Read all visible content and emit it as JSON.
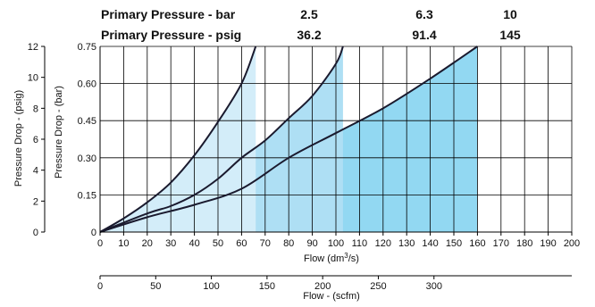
{
  "header": {
    "rows": [
      {
        "label": "Primary Pressure - bar",
        "values": [
          "2.5",
          "6.3",
          "10"
        ]
      },
      {
        "label": "Primary Pressure - psig",
        "values": [
          "36.2",
          "91.4",
          "145"
        ]
      }
    ]
  },
  "chart_data": {
    "type": "area",
    "grid": true,
    "x": {
      "label_prefix": "Flow (dm",
      "label_sup": "3",
      "label_suffix": "/s)",
      "range": [
        0,
        200
      ],
      "ticks": [
        "0",
        "10",
        "20",
        "30",
        "40",
        "50",
        "60",
        "70",
        "80",
        "90",
        "100",
        "110",
        "120",
        "130",
        "140",
        "150",
        "160",
        "170",
        "180",
        "190",
        "200"
      ]
    },
    "x2": {
      "label": "Flow - (scfm)",
      "range": [
        0,
        423.8
      ],
      "ticks": [
        "0",
        "50",
        "100",
        "150",
        "200",
        "250",
        "300"
      ]
    },
    "y": {
      "label": "Pressure Drop - (bar)",
      "range": [
        0,
        0.75
      ],
      "ticks": [
        "0",
        "0.15",
        "0.30",
        "0.45",
        "0.60",
        "0.75"
      ]
    },
    "y2": {
      "label": "Pressure Drop - (psig)",
      "range": [
        0,
        12
      ],
      "ticks": [
        "0",
        "2",
        "4",
        "6",
        "8",
        "10",
        "12"
      ]
    },
    "series": [
      {
        "pressure_bar": "2.5",
        "fill": "#d3edf9",
        "points": [
          [
            0,
            0
          ],
          [
            10,
            0.055
          ],
          [
            20,
            0.12
          ],
          [
            30,
            0.2
          ],
          [
            40,
            0.31
          ],
          [
            50,
            0.445
          ],
          [
            60,
            0.6
          ],
          [
            66,
            0.75
          ]
        ]
      },
      {
        "pressure_bar": "6.3",
        "fill": "#aedff4",
        "points": [
          [
            0,
            0
          ],
          [
            20,
            0.075
          ],
          [
            30,
            0.105
          ],
          [
            40,
            0.15
          ],
          [
            50,
            0.215
          ],
          [
            60,
            0.3
          ],
          [
            70,
            0.37
          ],
          [
            80,
            0.46
          ],
          [
            90,
            0.55
          ],
          [
            100,
            0.68
          ],
          [
            103,
            0.75
          ]
        ]
      },
      {
        "pressure_bar": "10",
        "fill": "#92d8f2",
        "points": [
          [
            0,
            0
          ],
          [
            20,
            0.06
          ],
          [
            40,
            0.11
          ],
          [
            60,
            0.175
          ],
          [
            80,
            0.3
          ],
          [
            100,
            0.4
          ],
          [
            120,
            0.5
          ],
          [
            140,
            0.62
          ],
          [
            160,
            0.75
          ]
        ]
      }
    ]
  }
}
